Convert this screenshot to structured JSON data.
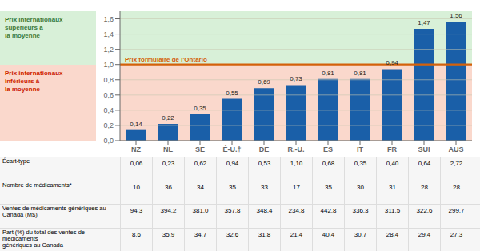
{
  "chart_data": {
    "type": "bar",
    "categories": [
      "NZ",
      "NL",
      "SE",
      "É-U.†",
      "DE",
      "R.-U.",
      "ES",
      "IT",
      "FR",
      "SUI",
      "AUS"
    ],
    "values": [
      0.14,
      0.22,
      0.35,
      0.55,
      0.69,
      0.73,
      0.81,
      0.81,
      0.94,
      1.47,
      1.56
    ],
    "value_labels": [
      "0,14",
      "0,22",
      "0,35",
      "0,55",
      "0,69",
      "0,73",
      "0,81",
      "0,81",
      "0,94",
      "1,47",
      "1,56"
    ],
    "color": "#1a5fa8",
    "data_labels": true,
    "grid": true,
    "ylim": [
      0.0,
      1.7
    ],
    "yticks": [
      {
        "value": 0.0,
        "label": "0,0"
      },
      {
        "value": 0.2,
        "label": "0,2"
      },
      {
        "value": 0.4,
        "label": "0,4"
      },
      {
        "value": 0.6,
        "label": "0,6"
      },
      {
        "value": 0.8,
        "label": "0,8"
      },
      {
        "value": 1.0,
        "label": "1,0"
      },
      {
        "value": 1.2,
        "label": "1,2"
      },
      {
        "value": 1.4,
        "label": "1,4"
      },
      {
        "value": 1.6,
        "label": "1,6"
      }
    ],
    "reference_line": {
      "value": 1.0,
      "label": "Prix formulaire de l'Ontario",
      "color": "#d4600a"
    },
    "above_band": {
      "color": "#d8f0d8",
      "text_color": "#3a7a3a",
      "text": [
        "Prix internationaux",
        "supérieurs à",
        "la moyenne"
      ]
    },
    "below_band": {
      "color": "#fad8cc",
      "text_color": "#cc2200",
      "text": [
        "Prix internationaux",
        "inférieurs à",
        "la moyenne"
      ]
    },
    "table_rows": [
      {
        "label": "Écart-type",
        "values": [
          "0,06",
          "0,23",
          "0,62",
          "0,94",
          "0,53",
          "1,10",
          "0,68",
          "0,35",
          "0,40",
          "0,64",
          "2,72"
        ]
      },
      {
        "label": "Nombre de médicaments*",
        "values": [
          "10",
          "36",
          "34",
          "35",
          "33",
          "17",
          "35",
          "30",
          "31",
          "28",
          "28"
        ]
      },
      {
        "label": "Ventes de médicaments génériques au Canada (M$)",
        "values": [
          "94,3",
          "394,2",
          "381,0",
          "357,8",
          "348,4",
          "234,8",
          "442,8",
          "336,3",
          "311,5",
          "322,6",
          "299,7"
        ]
      },
      {
        "label": "Part (%) du total des ventes de médicaments\ngénériques au Canada",
        "values": [
          "8,6",
          "35,9",
          "34,7",
          "32,6",
          "31,8",
          "21,4",
          "40,4",
          "30,7",
          "28,4",
          "29,4",
          "27,3"
        ]
      }
    ]
  }
}
